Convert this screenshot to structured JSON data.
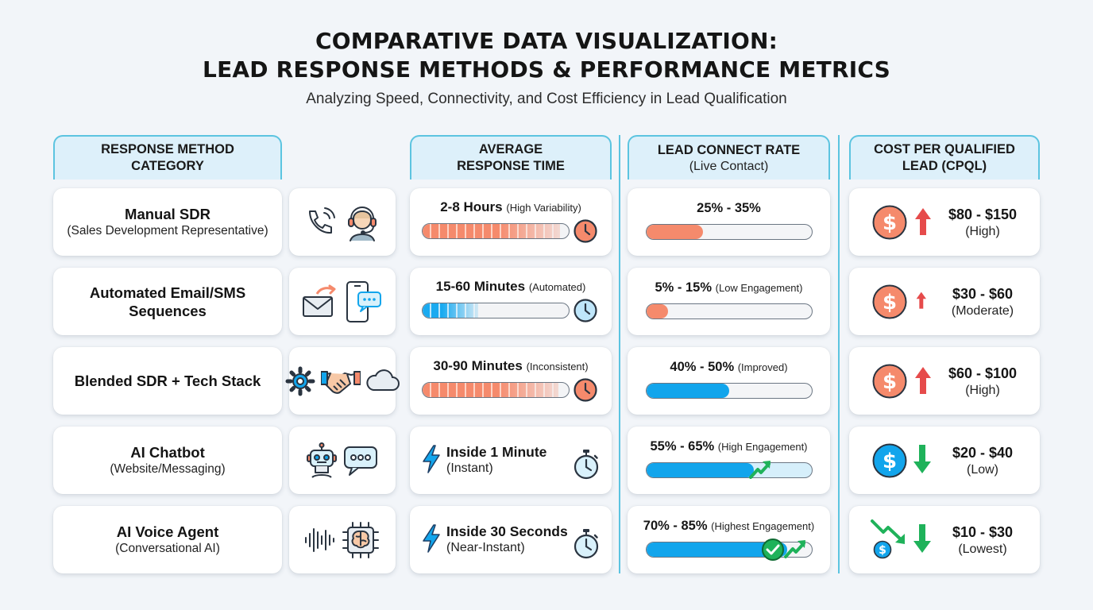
{
  "title": {
    "line1": "COMPARATIVE DATA VISUALIZATION:",
    "line2": "LEAD RESPONSE METHODS & PERFORMANCE METRICS",
    "subtitle": "Analyzing Speed, Connectivity, and Cost Efficiency in Lead Qualification"
  },
  "headers": {
    "method": [
      "RESPONSE METHOD",
      "CATEGORY"
    ],
    "response": [
      "AVERAGE",
      "RESPONSE TIME"
    ],
    "connect": [
      "LEAD CONNECT RATE",
      "(Live Contact)"
    ],
    "cost": [
      "COST PER QUALIFIED",
      "LEAD (CPQL)"
    ]
  },
  "colors": {
    "slow": "#f58a6c",
    "fast": "#12a5ec",
    "accent_border": "#5cc4e0",
    "cost_up": "#e64b4b",
    "cost_down": "#1fb25a"
  },
  "rows": [
    {
      "method": {
        "name": "Manual SDR",
        "detail": "(Sales Development Representative)"
      },
      "icons": [
        "phone-icon",
        "headset-agent-icon"
      ],
      "response": {
        "main": "2-8 Hours",
        "note": "(High Variability)",
        "style": "bar",
        "color": "orange",
        "fill_pct": 94
      },
      "connect": {
        "range": "25% - 35%",
        "note": "",
        "min": 25,
        "max": 35,
        "fill_pct": 34,
        "color": "orange"
      },
      "cost": {
        "value": "$80 - $150",
        "level": "(High)",
        "trend": "up",
        "min": 80,
        "max": 150
      }
    },
    {
      "method": {
        "name": "Automated Email/SMS",
        "detail": "Sequences"
      },
      "icons": [
        "email-send-icon",
        "mobile-chat-icon"
      ],
      "response": {
        "main": "15-60 Minutes",
        "note": "(Automated)",
        "style": "bar",
        "color": "blue",
        "fill_pct": 38
      },
      "connect": {
        "range": "5% - 15%",
        "note": "(Low Engagement)",
        "min": 5,
        "max": 15,
        "fill_pct": 13,
        "color": "orange"
      },
      "cost": {
        "value": "$30 - $60",
        "level": "(Moderate)",
        "trend": "up",
        "min": 30,
        "max": 60
      }
    },
    {
      "method": {
        "name": "Blended SDR + Tech Stack",
        "detail": ""
      },
      "icons": [
        "gear-icon",
        "handshake-icon",
        "cloud-icon"
      ],
      "response": {
        "main": "30-90 Minutes",
        "note": "(Inconsistent)",
        "style": "bar",
        "color": "orange",
        "fill_pct": 93
      },
      "connect": {
        "range": "40% - 50%",
        "note": "(Improved)",
        "min": 40,
        "max": 50,
        "fill_pct": 50,
        "color": "blue"
      },
      "cost": {
        "value": "$60 - $100",
        "level": "(High)",
        "trend": "up",
        "min": 60,
        "max": 100
      }
    },
    {
      "method": {
        "name": "AI Chatbot",
        "detail": "(Website/Messaging)"
      },
      "icons": [
        "robot-icon",
        "chat-bubble-icon"
      ],
      "response": {
        "main": "Inside 1 Minute",
        "sub": "(Instant)",
        "style": "fast"
      },
      "connect": {
        "range": "55% - 65%",
        "note": "(High Engagement)",
        "min": 55,
        "max": 65,
        "fill_pct": 65,
        "color": "blue"
      },
      "cost": {
        "value": "$20 - $40",
        "level": "(Low)",
        "trend": "down",
        "min": 20,
        "max": 40
      }
    },
    {
      "method": {
        "name": "AI Voice Agent",
        "detail": "(Conversational AI)"
      },
      "icons": [
        "sound-wave-icon",
        "ai-chip-brain-icon"
      ],
      "response": {
        "main": "Inside 30 Seconds",
        "sub": "(Near-Instant)",
        "style": "fast"
      },
      "connect": {
        "range": "70% - 85%",
        "note": "(Highest Engagement)",
        "min": 70,
        "max": 85,
        "fill_pct": 85,
        "color": "blue"
      },
      "cost": {
        "value": "$10 - $30",
        "level": "(Lowest)",
        "trend": "down",
        "min": 10,
        "max": 30
      }
    }
  ],
  "chart_data": {
    "type": "table",
    "title": "COMPARATIVE DATA VISUALIZATION: LEAD RESPONSE METHODS & PERFORMANCE METRICS",
    "subtitle": "Analyzing Speed, Connectivity, and Cost Efficiency in Lead Qualification",
    "columns": [
      "RESPONSE METHOD CATEGORY",
      "AVERAGE RESPONSE TIME",
      "LEAD CONNECT RATE (Live Contact)",
      "COST PER QUALIFIED LEAD (CPQL)"
    ],
    "categories": [
      "Manual SDR",
      "Automated Email/SMS Sequences",
      "Blended SDR + Tech Stack",
      "AI Chatbot",
      "AI Voice Agent"
    ],
    "response_time": [
      "2-8 Hours",
      "15-60 Minutes",
      "30-90 Minutes",
      "Inside 1 Minute",
      "Inside 30 Seconds"
    ],
    "connect_rate_pct": [
      [
        25,
        35
      ],
      [
        5,
        15
      ],
      [
        40,
        50
      ],
      [
        55,
        65
      ],
      [
        70,
        85
      ]
    ],
    "cpql_usd": [
      [
        80,
        150
      ],
      [
        30,
        60
      ],
      [
        60,
        100
      ],
      [
        20,
        40
      ],
      [
        10,
        30
      ]
    ],
    "cpql_level": [
      "High",
      "Moderate",
      "High",
      "Low",
      "Lowest"
    ]
  }
}
